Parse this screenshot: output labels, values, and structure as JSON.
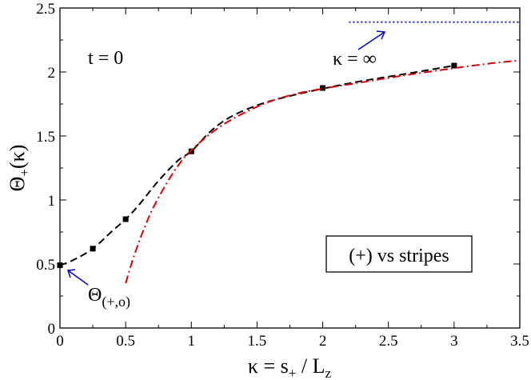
{
  "chart_data": {
    "type": "line",
    "title": "",
    "xlabel": "κ = s+ / Lz",
    "ylabel": "Θ+(κ)",
    "xlim": [
      0,
      3.5
    ],
    "ylim": [
      0,
      2.5
    ],
    "xticks": [
      0,
      0.5,
      1,
      1.5,
      2,
      2.5,
      3,
      3.5
    ],
    "xtick_labels": [
      "0",
      "0.5",
      "1",
      "1.5",
      "2",
      "2.5",
      "3",
      "3.5"
    ],
    "yticks": [
      0,
      0.5,
      1,
      1.5,
      2,
      2.5
    ],
    "ytick_labels": [
      "0",
      "0.5",
      "1",
      "1.5",
      "2",
      "2.5"
    ],
    "grid": false,
    "series": [
      {
        "style": "dashed",
        "color": "#000000",
        "x": [
          0,
          0.1,
          0.25,
          0.4,
          0.5,
          0.6,
          0.75,
          0.9,
          1.0,
          1.15,
          1.3,
          1.5,
          1.7,
          2.0,
          2.3,
          2.6,
          3.0
        ],
        "y": [
          0.49,
          0.53,
          0.62,
          0.76,
          0.85,
          0.96,
          1.15,
          1.31,
          1.38,
          1.54,
          1.65,
          1.74,
          1.8,
          1.87,
          1.93,
          1.98,
          2.05
        ]
      },
      {
        "style": "markers",
        "color": "#000000",
        "x": [
          0,
          0.25,
          0.5,
          1.0,
          2.0,
          3.0
        ],
        "y": [
          0.49,
          0.62,
          0.85,
          1.38,
          1.875,
          2.05
        ]
      },
      {
        "style": "dash-dot",
        "color": "#e00000",
        "x": [
          0.5,
          0.55,
          0.6,
          0.65,
          0.7,
          0.8,
          0.9,
          1.0,
          1.2,
          1.4,
          1.6,
          1.8,
          2.0,
          2.3,
          2.6,
          3.0,
          3.3,
          3.5
        ],
        "y": [
          0.35,
          0.52,
          0.67,
          0.8,
          0.92,
          1.11,
          1.27,
          1.39,
          1.56,
          1.68,
          1.77,
          1.83,
          1.87,
          1.92,
          1.97,
          2.03,
          2.07,
          2.09
        ]
      },
      {
        "style": "dotted",
        "color": "#0000dd",
        "x": [
          2.2,
          3.5
        ],
        "y": [
          2.39,
          2.39
        ]
      }
    ],
    "annotations": {
      "time_label": "t = 0",
      "kappa_inf_label": "κ = ∞",
      "theta_label_main": "Θ",
      "theta_label_sub": "(+,o)",
      "legend_box": "(+) vs stripes"
    },
    "arrow_color": "#0000dd"
  }
}
